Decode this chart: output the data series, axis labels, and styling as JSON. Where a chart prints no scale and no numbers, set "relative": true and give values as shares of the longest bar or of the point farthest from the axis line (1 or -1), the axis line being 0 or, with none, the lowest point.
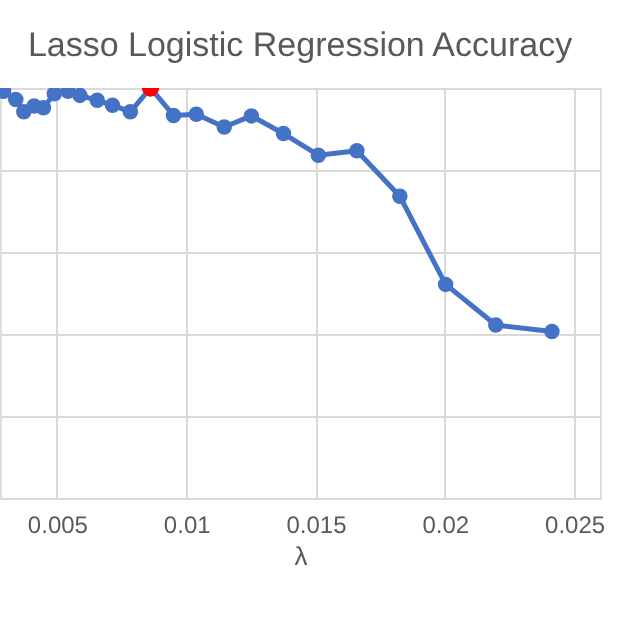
{
  "chart_data": {
    "type": "line",
    "title": "Lasso Logistic Regression Accuracy",
    "xlabel": "λ",
    "relative": true,
    "grid": true,
    "marker": "circle",
    "line_style": "solid",
    "xlim": [
      0.0028,
      0.026
    ],
    "xticks": [
      0.005,
      0.01,
      0.015,
      0.02,
      0.025
    ],
    "series": [
      {
        "color": "#4472c4",
        "x": [
          0.00294,
          0.00341,
          0.00372,
          0.00412,
          0.00448,
          0.0049,
          0.00543,
          0.00589,
          0.00656,
          0.00715,
          0.00784,
          0.00862,
          0.00951,
          0.01039,
          0.01147,
          0.01252,
          0.01376,
          0.01511,
          0.0166,
          0.01826,
          0.02003,
          0.02197,
          0.02414
        ],
        "values": [
          0.992,
          0.972,
          0.942,
          0.956,
          0.952,
          0.986,
          0.992,
          0.982,
          0.97,
          0.958,
          0.942,
          1,
          0.933,
          0.936,
          0.905,
          0.932,
          0.889,
          0.836,
          0.847,
          0.736,
          0.521,
          0.422,
          0.406
        ]
      },
      {
        "type": "scatter",
        "color": "#ff0000",
        "x": [
          0.00862
        ],
        "values": [
          1
        ]
      }
    ]
  }
}
